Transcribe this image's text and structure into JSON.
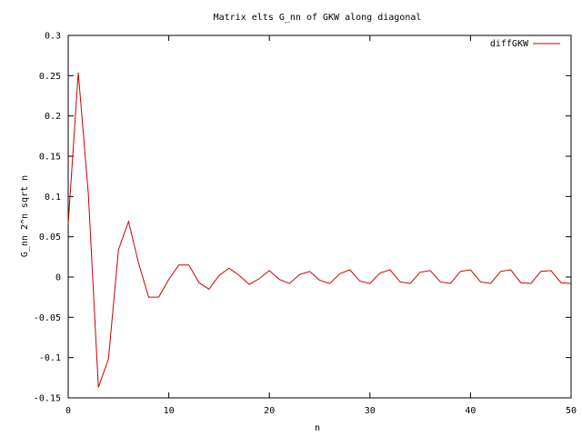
{
  "chart_data": {
    "type": "line",
    "title": "Matrix elts G_nn of GKW along diagonal",
    "xlabel": "n",
    "ylabel": "G_nn 2^n sqrt n",
    "xlim": [
      0,
      50
    ],
    "ylim": [
      -0.15,
      0.3
    ],
    "xticks": [
      0,
      10,
      20,
      30,
      40,
      50
    ],
    "xtick_labels": [
      "0",
      "10",
      "20",
      "30",
      "40",
      "50"
    ],
    "yticks": [
      -0.15,
      -0.1,
      -0.05,
      0,
      0.05,
      0.1,
      0.15,
      0.2,
      0.25,
      0.3
    ],
    "ytick_labels": [
      "-0.15",
      "-0.1",
      "-0.05",
      "0",
      "0.05",
      "0.1",
      "0.15",
      "0.2",
      "0.25",
      "0.3"
    ],
    "grid": false,
    "legend_position": "top-right",
    "series": [
      {
        "name": "diffGKW",
        "color": "#cc0000",
        "x": [
          0,
          1,
          2,
          3,
          4,
          5,
          6,
          7,
          8,
          9,
          10,
          11,
          12,
          13,
          14,
          15,
          16,
          17,
          18,
          19,
          20,
          21,
          22,
          23,
          24,
          25,
          26,
          27,
          28,
          29,
          30,
          31,
          32,
          33,
          34,
          35,
          36,
          37,
          38,
          39,
          40,
          41,
          42,
          43,
          44,
          45,
          46,
          47,
          48,
          49,
          50
        ],
        "y": [
          0.066,
          0.254,
          0.104,
          -0.137,
          -0.102,
          0.034,
          0.069,
          0.017,
          -0.025,
          -0.025,
          -0.003,
          0.015,
          0.015,
          -0.007,
          -0.015,
          0.002,
          0.011,
          0.002,
          -0.009,
          -0.002,
          0.008,
          -0.003,
          -0.008,
          0.003,
          0.007,
          -0.004,
          -0.008,
          0.004,
          0.009,
          -0.005,
          -0.008,
          0.005,
          0.009,
          -0.006,
          -0.008,
          0.006,
          0.008,
          -0.006,
          -0.008,
          0.007,
          0.009,
          -0.006,
          -0.008,
          0.007,
          0.009,
          -0.007,
          -0.008,
          0.007,
          0.008,
          -0.007,
          -0.008
        ]
      }
    ]
  }
}
